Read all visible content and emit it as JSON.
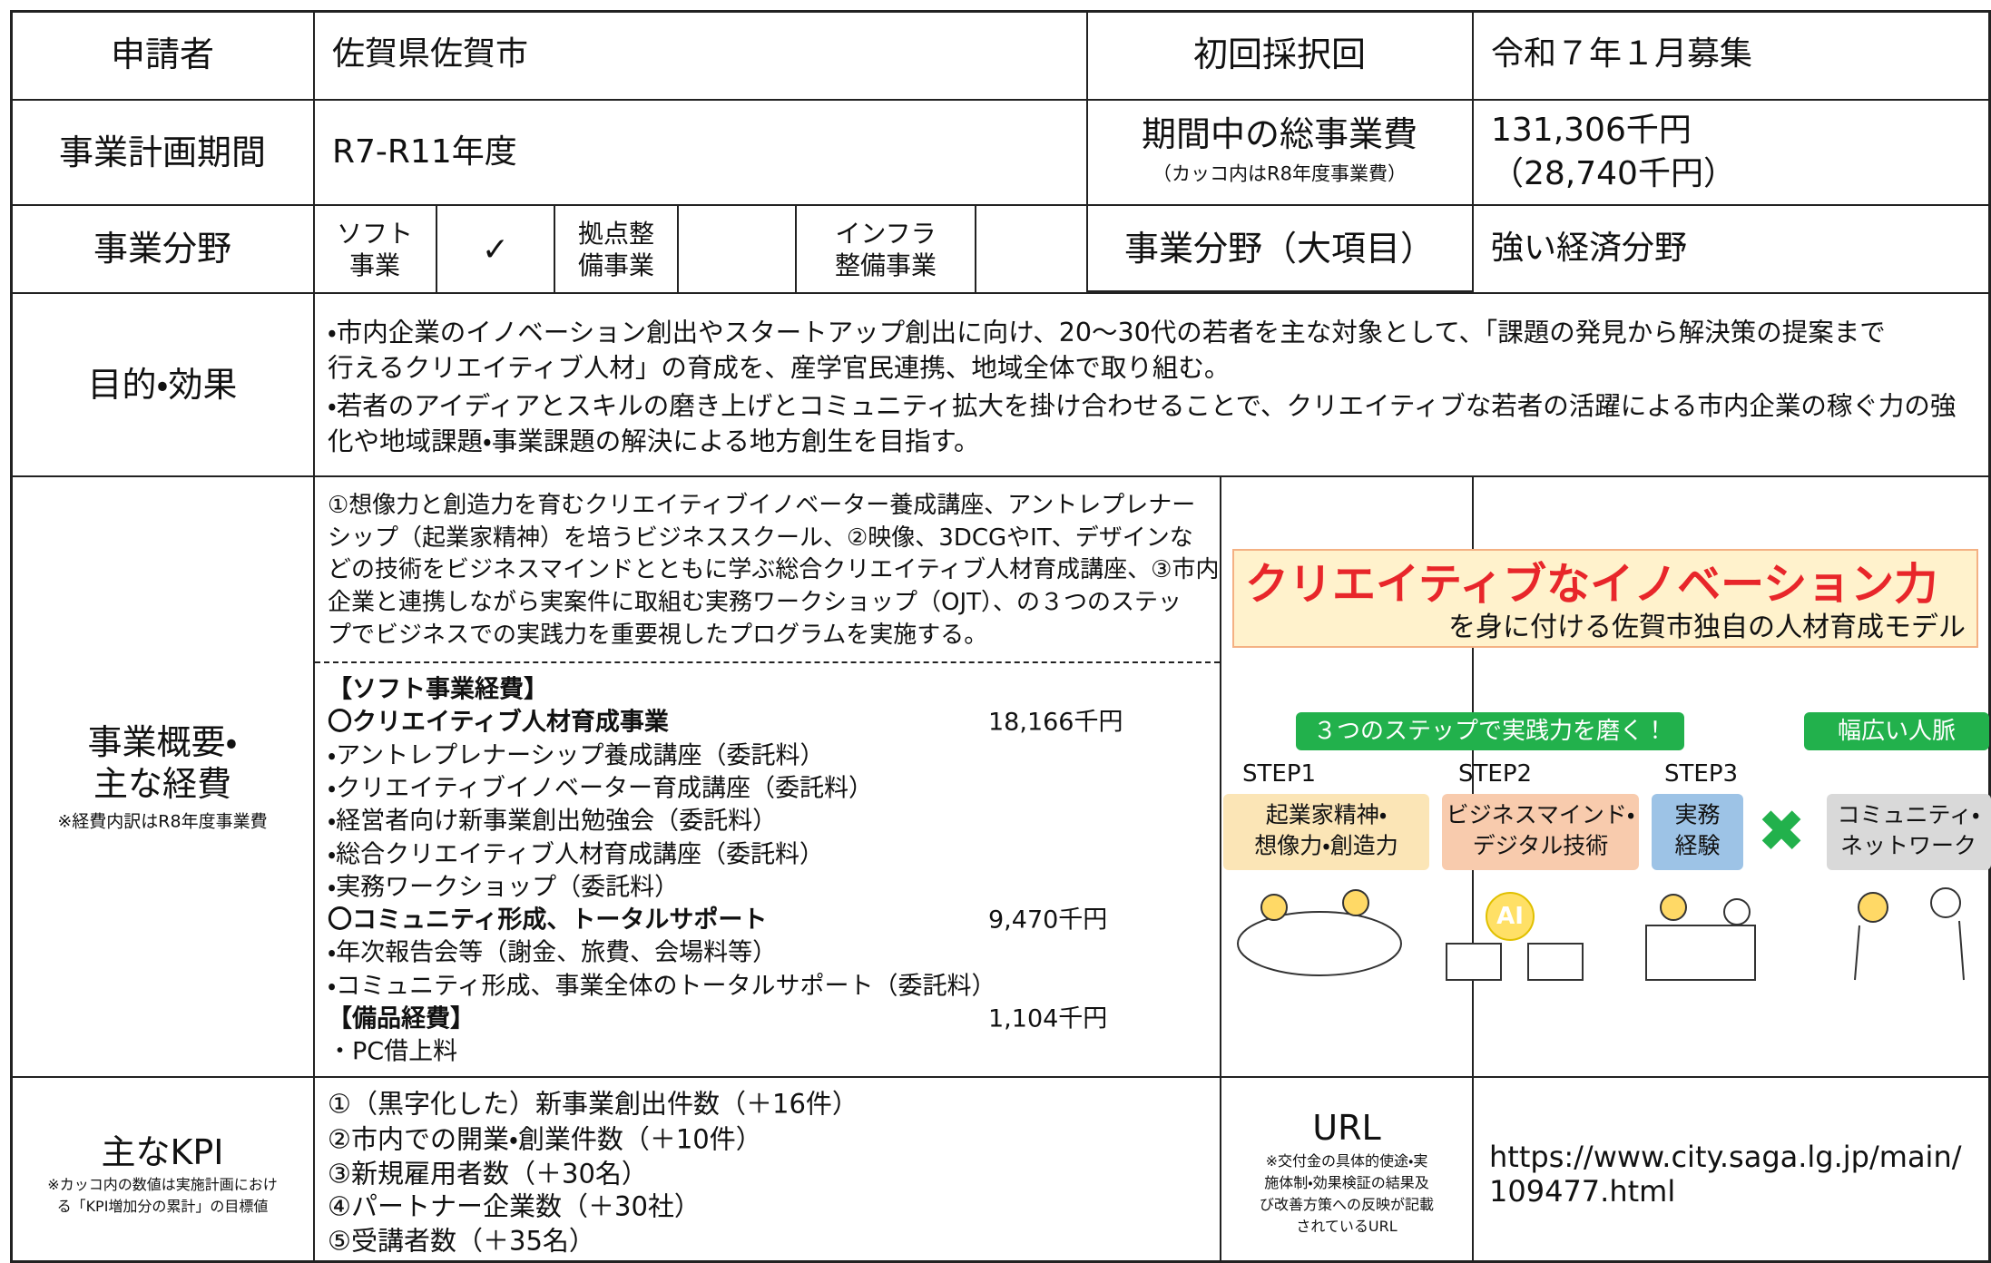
{
  "applicant": {
    "label": "申請者",
    "value": "佐賀県佐賀市"
  },
  "first_round": {
    "label": "初回採択回",
    "value": "令和７年１月募集"
  },
  "period": {
    "label": "事業計画期間",
    "value": "R7-R11年度"
  },
  "total_cost": {
    "label": "期間中の総事業費",
    "note": "（カッコ内はR8年度事業費）",
    "value": [
      "131,306千円",
      "（28,740千円）"
    ]
  },
  "field": {
    "label": "事業分野",
    "options": [
      {
        "label": [
          "ソフト",
          "事業"
        ],
        "checked": "✓"
      },
      {
        "label": [
          "拠点整",
          "備事業"
        ]
      },
      {
        "label": [
          "インフラ",
          "整備事業"
        ]
      }
    ]
  },
  "field_major": {
    "label": "事業分野（大項目）",
    "value": "強い経済分野"
  },
  "purpose": {
    "label": "目的・効果",
    "lines": [
      "・市内企業のイノベーション創出やスタートアップ創出に向け、20～30代の若者を主な対象として、「課題の発見から解決策の提案まで",
      "行えるクリエイティブ人材」の育成を、産学官民連携、地域全体で取り組む。",
      "・若者のアイディアとスキルの磨き上げとコミュニティ拡大を掛け合わせることで、クリエイティブな若者の活躍による市内企業の稼ぐ力の強",
      "化や地域課題・事業課題の解決による地方創生を目指す。"
    ]
  },
  "overview": {
    "label": [
      "事業概要・",
      "主な経費"
    ],
    "note": "※経費内訳はR8年度事業費",
    "description": [
      "①想像力と創造力を育むクリエイティブイノベーター養成講座、アントレプレナー",
      "シップ（起業家精神）を培うビジネススクール、②映像、3DCGやIT、デザインな",
      "どの技術をビジネスマインドとともに学ぶ総合クリエイティブ人材育成講座、③市内",
      "企業と連携しながら実案件に取組む実務ワークショップ（OJT）、の３つのステッ",
      "プでビジネスでの実践力を重要視したプログラムを実施する。"
    ],
    "expenses": [
      {
        "text": "【ソフト事業経費】",
        "bold": true
      },
      {
        "text": "〇クリエイティブ人材育成事業",
        "amount": "18,166千円",
        "bold": true
      },
      {
        "text": "・アントレプレナーシップ養成講座（委託料）"
      },
      {
        "text": "・クリエイティブイノベーター育成講座（委託料）"
      },
      {
        "text": "・経営者向け新事業創出勉強会（委託料）"
      },
      {
        "text": "・総合クリエイティブ人材育成講座（委託料）"
      },
      {
        "text": "・実務ワークショップ（委託料）"
      },
      {
        "text": "〇コミュニティ形成、トータルサポート",
        "amount": "9,470千円",
        "bold": true
      },
      {
        "text": "・年次報告会等（謝金、旅費、会場料等）"
      },
      {
        "text": "・コミュニティ形成、事業全体のトータルサポート（委託料）"
      },
      {
        "text": "【備品経費】",
        "amount": "1,104千円",
        "bold": true
      },
      {
        "text": "・PC借上料"
      }
    ]
  },
  "kpi": {
    "label": "主なKPI",
    "note": [
      "※カッコ内の数値は実施計画におけ",
      "る「KPI増加分の累計」の目標値"
    ],
    "items": [
      "①（黒字化した）新事業創出件数（＋16件）",
      "②市内での開業・創業件数（＋10件）",
      "③新規雇用者数（＋30名）",
      "④パートナー企業数（＋30社）",
      "⑤受講者数（＋35名）"
    ]
  },
  "url": {
    "label": "URL",
    "note": [
      "※交付金の具体的使途・実",
      "施体制・効果検証の結果及",
      "び改善方策への反映が記載",
      "されているURL"
    ],
    "value": [
      "https://www.city.saga.lg.jp/main/",
      "109477.html"
    ]
  },
  "figure": {
    "title": "クリエイティブなイノベーション力",
    "subtitle": "を身に付ける佐賀市独自の人材育成モデル",
    "banner": "３つのステップで実践力を磨く！",
    "banner2": "幅広い人脈",
    "steps": [
      {
        "name": "STEP1",
        "lines": [
          "起業家精神・",
          "想像力・創造力"
        ]
      },
      {
        "name": "STEP2",
        "lines": [
          "ビジネスマインド・",
          "デジタル技術"
        ]
      },
      {
        "name": "STEP3",
        "lines": [
          "実務",
          "経験"
        ]
      }
    ],
    "network": [
      "コミュニティ・",
      "ネットワーク"
    ],
    "ai": "AI"
  }
}
